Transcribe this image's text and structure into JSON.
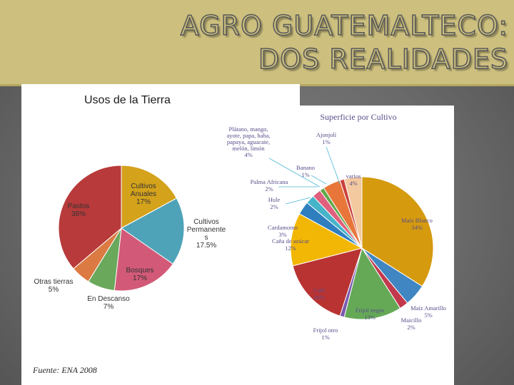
{
  "header": {
    "title_line1": "AGRO GUATEMALTECO:",
    "title_line2": "DOS REALIDADES"
  },
  "source": "Fuente: ENA 2008",
  "chart_data": [
    {
      "type": "pie",
      "title": "Usos de la Tierra",
      "slices": [
        {
          "label": "Cultivos Anuales",
          "display": [
            "Cultivos",
            "Anuales",
            "17%"
          ],
          "value": 17,
          "color": "#d4a21b"
        },
        {
          "label": "Cultivos Permanentes",
          "display": [
            "Cultivos",
            "Permanente",
            "s",
            "17.5%"
          ],
          "value": 17.5,
          "color": "#4fa3b8"
        },
        {
          "label": "Bosques",
          "display": [
            "Bosques",
            "17%"
          ],
          "value": 17,
          "color": "#d25a78"
        },
        {
          "label": "En Descanso",
          "display": [
            "En Descanso",
            "7%"
          ],
          "value": 7,
          "color": "#6aa85c"
        },
        {
          "label": "Otras tierras",
          "display": [
            "Otras tierras",
            "5%"
          ],
          "value": 5,
          "color": "#db7b43"
        },
        {
          "label": "Pastos",
          "display": [
            "Pastos",
            "36%"
          ],
          "value": 36,
          "color": "#b83a3a"
        }
      ]
    },
    {
      "type": "pie",
      "title": "Superficie por Cultivo",
      "slices": [
        {
          "label": "Maíz Blanco",
          "display": [
            "Maíz Blanco",
            "34%"
          ],
          "value": 34,
          "color": "#d59a0e"
        },
        {
          "label": "Maíz Amarillo",
          "display": [
            "Maíz Amarillo",
            "5%"
          ],
          "value": 5,
          "color": "#3f86c2"
        },
        {
          "label": "Maicillo",
          "display": [
            "Maicillo",
            "2%"
          ],
          "value": 2,
          "color": "#c2384d"
        },
        {
          "label": "Frijol negro",
          "display": [
            "Frijol negro",
            "13%"
          ],
          "value": 13,
          "color": "#65a957"
        },
        {
          "label": "Frijol otro",
          "display": [
            "Frijol otro",
            "1%"
          ],
          "value": 1,
          "color": "#7a5ab0"
        },
        {
          "label": "Café",
          "display": [
            "Café",
            "16%"
          ],
          "value": 16,
          "color": "#b93333"
        },
        {
          "label": "Caña de azúcar",
          "display": [
            "Caña de azúcar",
            "12%"
          ],
          "value": 12,
          "color": "#f2b705"
        },
        {
          "label": "Cardamomo",
          "display": [
            "Cardamomo",
            "3%"
          ],
          "value": 3,
          "color": "#2f7fbf"
        },
        {
          "label": "Hule",
          "display": [
            "Hule",
            "2%"
          ],
          "value": 2,
          "color": "#45b3c8"
        },
        {
          "label": "Palma Africana",
          "display": [
            "Palma Africana",
            "2%"
          ],
          "value": 2,
          "color": "#e05f7d"
        },
        {
          "label": "Banano",
          "display": [
            "Banano",
            "1%"
          ],
          "value": 1,
          "color": "#5fa84a"
        },
        {
          "label": "Plátano, mango, ayote, papa, haba, papaya, aguacate, melón, limón",
          "display": [
            "Plátano, mango,",
            "ayote, papa, haba,",
            "papaya, aguacate,",
            "melón, limón",
            "4%"
          ],
          "value": 4,
          "color": "#e8763b"
        },
        {
          "label": "Ajonjolí",
          "display": [
            "Ajonjolí",
            "1%"
          ],
          "value": 1,
          "color": "#c9413c"
        },
        {
          "label": "varios",
          "display": [
            "varios",
            "4%"
          ],
          "value": 4,
          "color": "#f3c9a0"
        }
      ]
    }
  ]
}
